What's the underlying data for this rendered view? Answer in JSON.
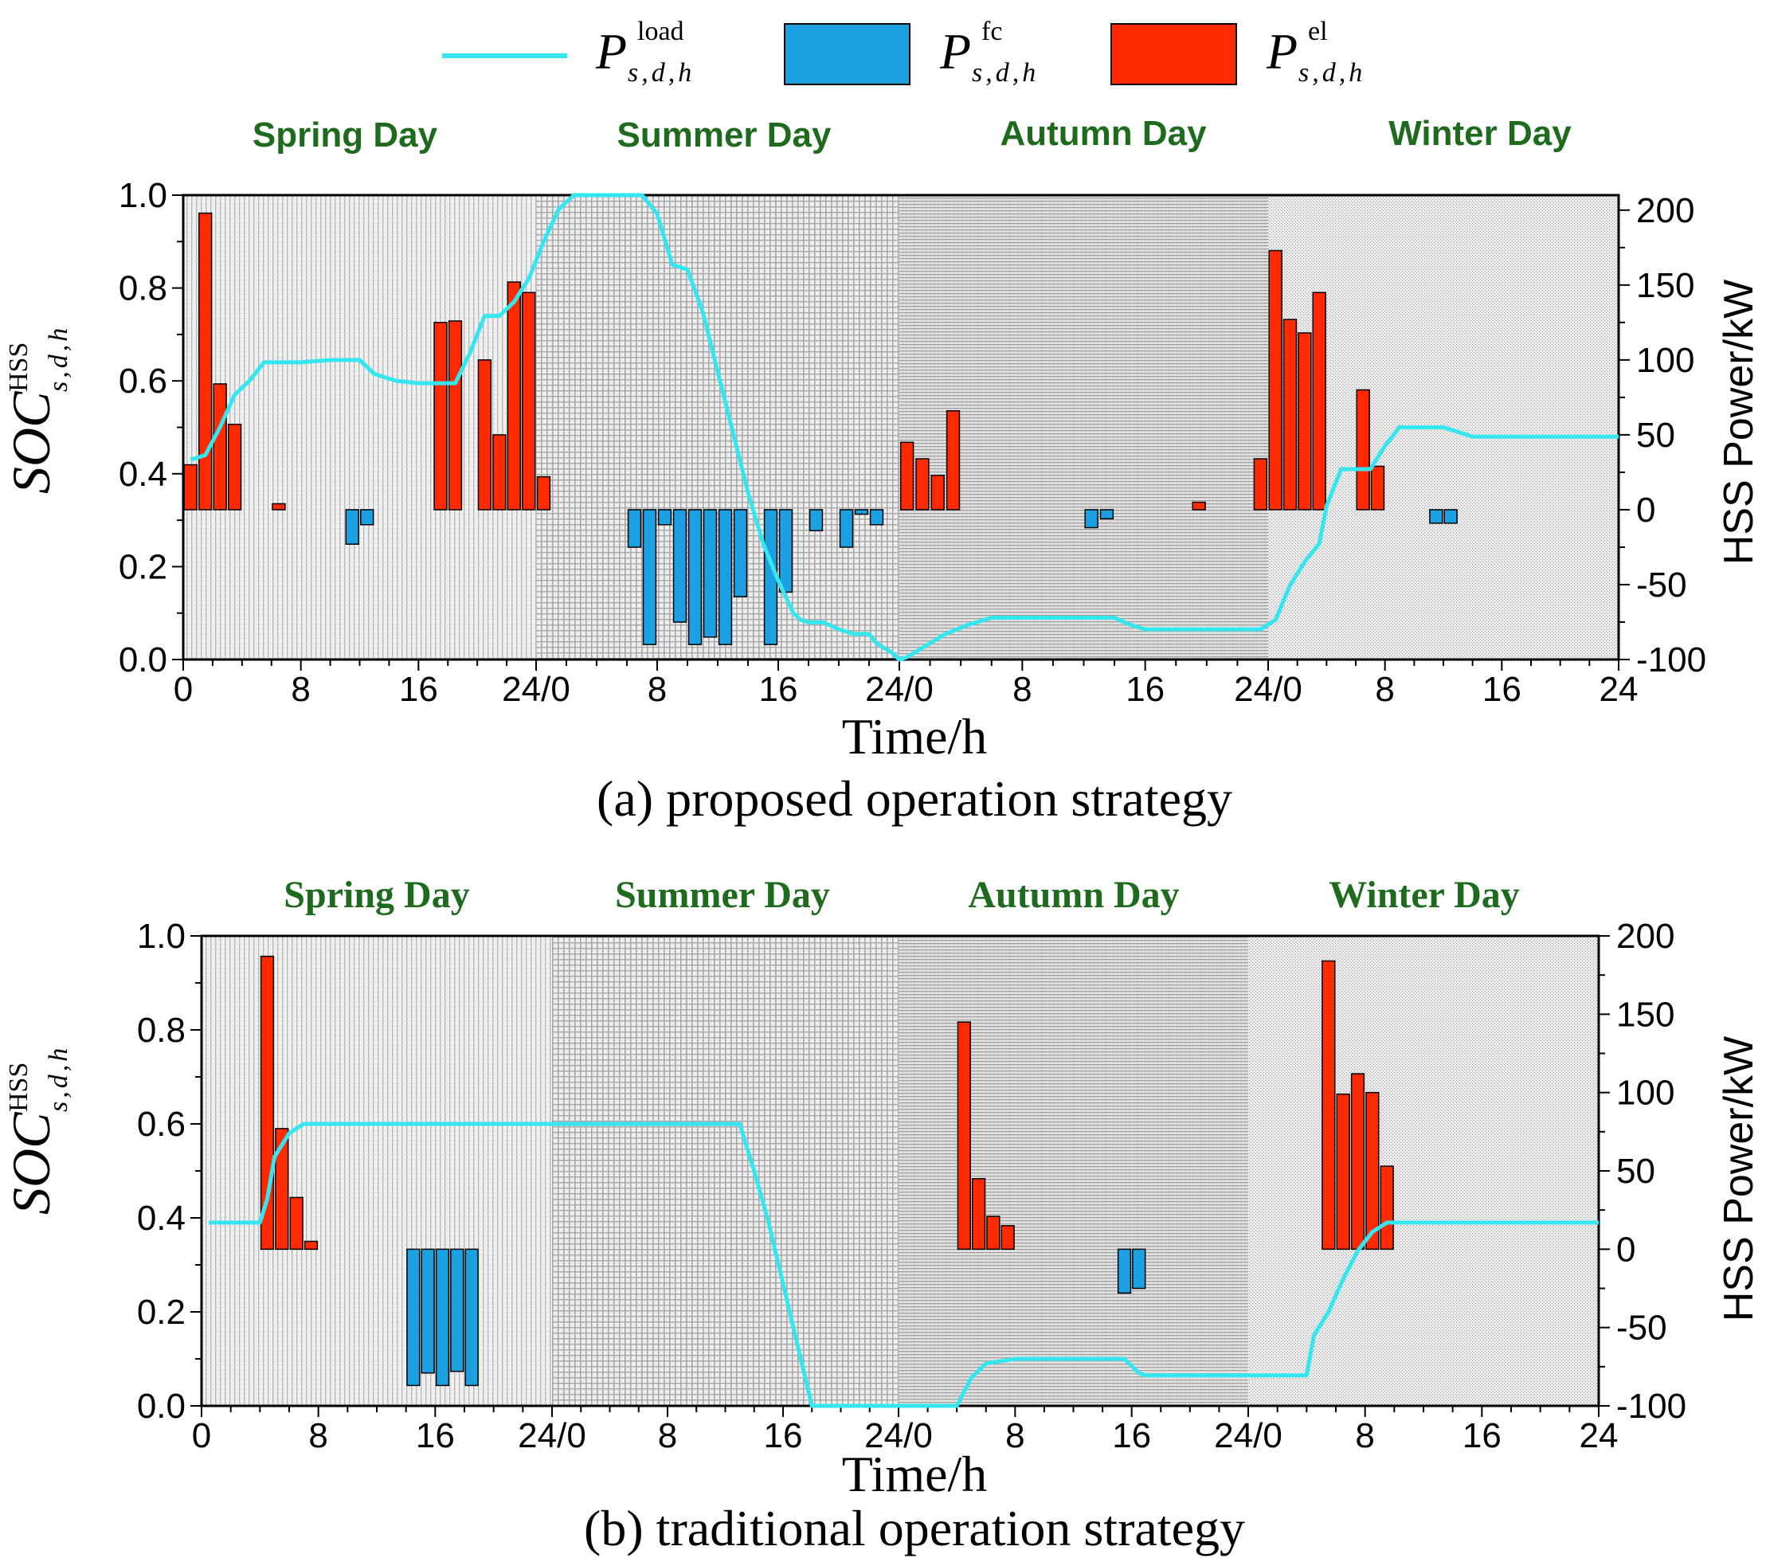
{
  "legend": {
    "items": [
      {
        "kind": "line",
        "symbol": "P",
        "sup": "load",
        "sub": "s,d,h",
        "color": "#33E6F0"
      },
      {
        "kind": "bar",
        "symbol": "P",
        "sup": "fc",
        "sub": "s,d,h",
        "color": "#1BA1E2"
      },
      {
        "kind": "bar",
        "symbol": "P",
        "sup": "el",
        "sub": "s,d,h",
        "color": "#FF2A00"
      }
    ]
  },
  "colors": {
    "season_label": "#1E6B1E",
    "soc_line": "#33E6F0",
    "fc_bar": "#1BA1E2",
    "el_bar": "#FF2A00",
    "axis": "#000000"
  },
  "chart_data": [
    {
      "type": "bar+line",
      "caption": "(a) proposed operation strategy",
      "xlabel": "Time/h",
      "ylabel_left": {
        "symbol": "SOC",
        "sup": "HSS",
        "sub": "s,d,h"
      },
      "ylabel_right": "HSS Power/kW",
      "seasons": [
        "Spring Day",
        "Summer Day",
        "Autumn Day",
        "Winter Day"
      ],
      "x_ticks": [
        "0",
        "8",
        "16",
        "24/0",
        "8",
        "16",
        "24/0",
        "8",
        "16",
        "24/0",
        "8",
        "16",
        "24"
      ],
      "left_ticks": [
        "0.0",
        "0.2",
        "0.4",
        "0.6",
        "0.8",
        "1.0"
      ],
      "right_ticks": [
        "-100",
        "-50",
        "0",
        "50",
        "100",
        "150",
        "200"
      ],
      "xlim": [
        0,
        96
      ],
      "ylim_left": [
        0,
        1
      ],
      "ylim_right": [
        -100,
        210
      ],
      "el_bars": [
        [
          0.5,
          30
        ],
        [
          1.5,
          198
        ],
        [
          2.5,
          84
        ],
        [
          3.5,
          57
        ],
        [
          6.5,
          4
        ],
        [
          17.5,
          125
        ],
        [
          18.5,
          126
        ],
        [
          20.5,
          100
        ],
        [
          21.5,
          50
        ],
        [
          22.5,
          152
        ],
        [
          23.5,
          145
        ],
        [
          24.5,
          22
        ],
        [
          48.5,
          45
        ],
        [
          49.5,
          34
        ],
        [
          50.5,
          23
        ],
        [
          51.5,
          66
        ],
        [
          67.5,
          5
        ],
        [
          71.5,
          34
        ],
        [
          72.5,
          173
        ],
        [
          73.5,
          127
        ],
        [
          74.5,
          118
        ],
        [
          75.5,
          145
        ],
        [
          78.5,
          80
        ],
        [
          79.5,
          29
        ]
      ],
      "fc_bars": [
        [
          11.5,
          -23
        ],
        [
          12.5,
          -10
        ],
        [
          30.5,
          -25
        ],
        [
          31.5,
          -90
        ],
        [
          32.5,
          -10
        ],
        [
          33.5,
          -75
        ],
        [
          34.5,
          -90
        ],
        [
          35.5,
          -85
        ],
        [
          36.5,
          -90
        ],
        [
          37.5,
          -58
        ],
        [
          39.5,
          -90
        ],
        [
          40.5,
          -55
        ],
        [
          42.5,
          -14
        ],
        [
          44.5,
          -25
        ],
        [
          45.5,
          -3
        ],
        [
          46.5,
          -10
        ],
        [
          60.5,
          -12
        ],
        [
          61.5,
          -6
        ],
        [
          83.5,
          -9
        ],
        [
          84.5,
          -9
        ]
      ],
      "soc_line": [
        [
          0.5,
          0.43
        ],
        [
          1.5,
          0.44
        ],
        [
          2.5,
          0.5
        ],
        [
          3.5,
          0.57
        ],
        [
          4.5,
          0.6
        ],
        [
          5.5,
          0.64
        ],
        [
          6.5,
          0.64
        ],
        [
          8,
          0.64
        ],
        [
          10,
          0.645
        ],
        [
          12,
          0.645
        ],
        [
          13,
          0.615
        ],
        [
          14.5,
          0.6
        ],
        [
          16,
          0.595
        ],
        [
          18,
          0.595
        ],
        [
          18.5,
          0.595
        ],
        [
          19.5,
          0.66
        ],
        [
          20.5,
          0.74
        ],
        [
          21.5,
          0.74
        ],
        [
          22.5,
          0.77
        ],
        [
          23.5,
          0.82
        ],
        [
          24.5,
          0.9
        ],
        [
          25.5,
          0.97
        ],
        [
          26.5,
          1.0
        ],
        [
          28,
          1.0
        ],
        [
          30,
          1.0
        ],
        [
          31,
          1.0
        ],
        [
          32,
          0.96
        ],
        [
          33,
          0.85
        ],
        [
          34,
          0.84
        ],
        [
          35,
          0.75
        ],
        [
          36,
          0.62
        ],
        [
          37,
          0.49
        ],
        [
          38,
          0.36
        ],
        [
          39,
          0.25
        ],
        [
          40,
          0.17
        ],
        [
          41,
          0.1
        ],
        [
          41.5,
          0.085
        ],
        [
          42,
          0.08
        ],
        [
          43,
          0.08
        ],
        [
          44,
          0.065
        ],
        [
          45,
          0.055
        ],
        [
          46,
          0.055
        ],
        [
          46.5,
          0.035
        ],
        [
          47.5,
          0.015
        ],
        [
          48,
          0.0
        ],
        [
          48.5,
          0.005
        ],
        [
          49.5,
          0.025
        ],
        [
          51,
          0.055
        ],
        [
          52.5,
          0.075
        ],
        [
          54,
          0.09
        ],
        [
          56,
          0.09
        ],
        [
          58,
          0.09
        ],
        [
          60,
          0.09
        ],
        [
          62,
          0.09
        ],
        [
          63,
          0.075
        ],
        [
          64,
          0.065
        ],
        [
          66,
          0.065
        ],
        [
          68,
          0.065
        ],
        [
          70,
          0.065
        ],
        [
          71.5,
          0.065
        ],
        [
          72.5,
          0.085
        ],
        [
          73.5,
          0.16
        ],
        [
          74.5,
          0.21
        ],
        [
          75.5,
          0.25
        ],
        [
          76,
          0.33
        ],
        [
          77,
          0.41
        ],
        [
          78,
          0.41
        ],
        [
          79,
          0.41
        ],
        [
          80,
          0.46
        ],
        [
          81,
          0.5
        ],
        [
          82,
          0.5
        ],
        [
          83,
          0.5
        ],
        [
          84,
          0.5
        ],
        [
          85,
          0.49
        ],
        [
          86,
          0.48
        ],
        [
          88,
          0.48
        ],
        [
          90,
          0.48
        ],
        [
          92,
          0.48
        ],
        [
          94,
          0.48
        ],
        [
          96,
          0.48
        ]
      ]
    },
    {
      "type": "bar+line",
      "caption": "(b) traditional operation strategy",
      "xlabel": "Time/h",
      "ylabel_left": {
        "symbol": "SOC",
        "sup": "HSS",
        "sub": "s,d,h"
      },
      "ylabel_right": "HSS Power/kW",
      "seasons": [
        "Spring Day",
        "Summer Day",
        "Autumn Day",
        "Winter Day"
      ],
      "x_ticks": [
        "0",
        "8",
        "16",
        "24/0",
        "8",
        "16",
        "24/0",
        "8",
        "16",
        "24/0",
        "8",
        "16",
        "24"
      ],
      "left_ticks": [
        "0.0",
        "0.2",
        "0.4",
        "0.6",
        "0.8",
        "1.0"
      ],
      "right_ticks": [
        "-100",
        "-50",
        "0",
        "50",
        "100",
        "150",
        "200"
      ],
      "xlim": [
        0,
        96
      ],
      "ylim_left": [
        0,
        1
      ],
      "ylim_right": [
        -100,
        200
      ],
      "el_bars": [
        [
          4.5,
          187
        ],
        [
          5.5,
          77
        ],
        [
          6.5,
          33
        ],
        [
          7.5,
          5
        ],
        [
          52.5,
          145
        ],
        [
          53.5,
          45
        ],
        [
          54.5,
          21
        ],
        [
          55.5,
          15
        ],
        [
          77.5,
          184
        ],
        [
          78.5,
          99
        ],
        [
          79.5,
          112
        ],
        [
          80.5,
          100
        ],
        [
          81.5,
          53
        ]
      ],
      "fc_bars": [
        [
          14.5,
          -87
        ],
        [
          15.5,
          -79
        ],
        [
          16.5,
          -87
        ],
        [
          17.5,
          -78
        ],
        [
          18.5,
          -87
        ],
        [
          63.5,
          -28
        ],
        [
          64.5,
          -25
        ]
      ],
      "soc_line": [
        [
          0.5,
          0.39
        ],
        [
          2,
          0.39
        ],
        [
          4,
          0.39
        ],
        [
          4.5,
          0.44
        ],
        [
          5,
          0.53
        ],
        [
          6,
          0.58
        ],
        [
          6.5,
          0.59
        ],
        [
          7,
          0.6
        ],
        [
          8,
          0.6
        ],
        [
          10,
          0.6
        ],
        [
          20,
          0.6
        ],
        [
          30,
          0.6
        ],
        [
          36,
          0.6
        ],
        [
          37,
          0.6
        ],
        [
          38,
          0.5
        ],
        [
          39,
          0.39
        ],
        [
          40,
          0.26
        ],
        [
          41,
          0.13
        ],
        [
          42,
          0.0
        ],
        [
          48,
          0.0
        ],
        [
          52,
          0.0
        ],
        [
          53,
          0.06
        ],
        [
          54,
          0.09
        ],
        [
          56,
          0.1
        ],
        [
          62,
          0.1
        ],
        [
          63.5,
          0.1
        ],
        [
          64.5,
          0.07
        ],
        [
          65,
          0.065
        ],
        [
          66,
          0.065
        ],
        [
          70,
          0.065
        ],
        [
          75,
          0.065
        ],
        [
          76,
          0.065
        ],
        [
          76.5,
          0.15
        ],
        [
          77.5,
          0.2
        ],
        [
          78.5,
          0.27
        ],
        [
          79.5,
          0.33
        ],
        [
          80.5,
          0.37
        ],
        [
          81.5,
          0.39
        ],
        [
          83,
          0.39
        ],
        [
          88,
          0.39
        ],
        [
          92,
          0.39
        ],
        [
          96,
          0.39
        ]
      ]
    }
  ]
}
